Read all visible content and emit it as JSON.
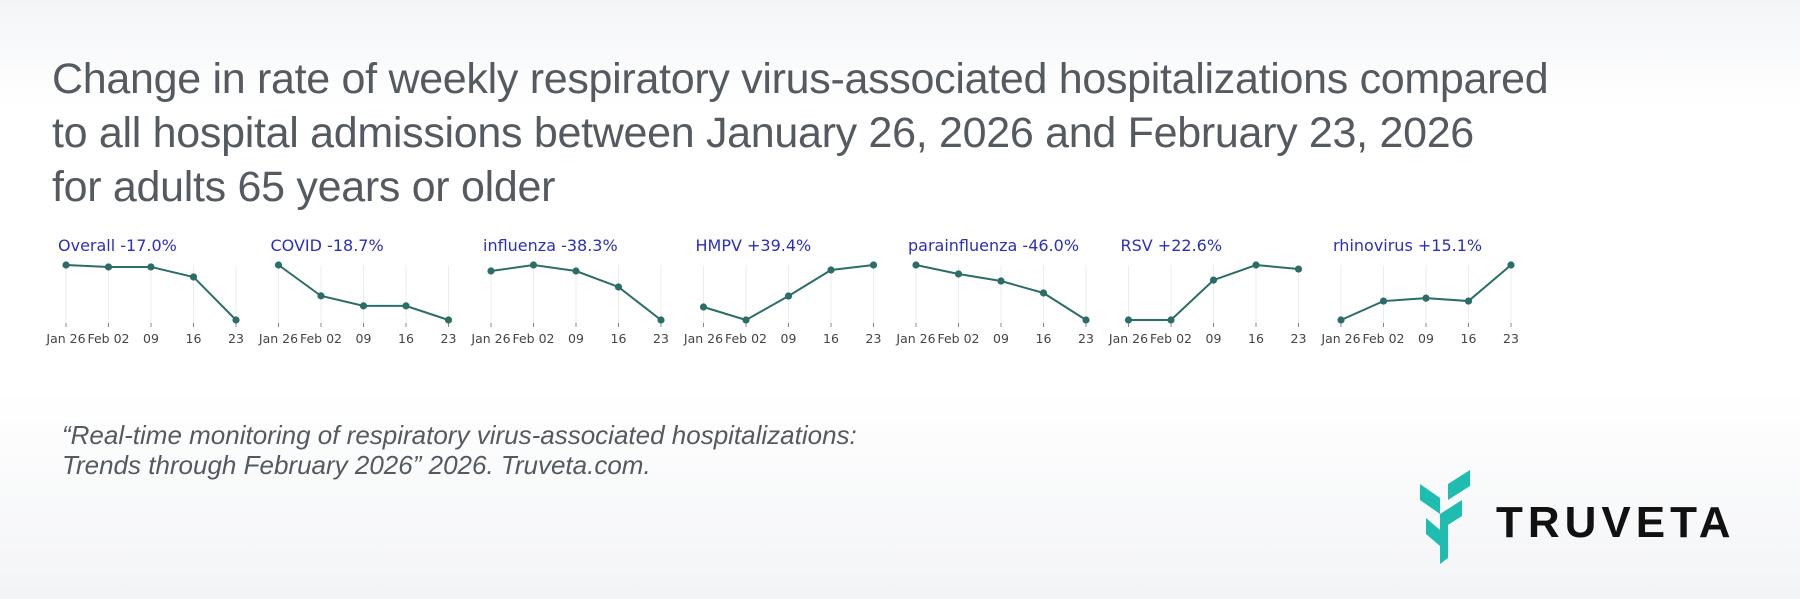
{
  "title": {
    "lines": [
      "Change in rate of weekly respiratory virus-associated hospitalizations compared",
      "to all hospital admissions between January 26, 2026 and February 23, 2026",
      "for adults 65 years or older"
    ]
  },
  "colors": {
    "line": "#2b6e67",
    "subtitle": "#2a2fbf",
    "text": "#555a60",
    "logo": "#1fbdb0"
  },
  "chart_data": [
    {
      "type": "line",
      "title": "Overall -17.0%",
      "categories": [
        "Jan 26",
        "Feb 02",
        "09",
        "16",
        "23"
      ],
      "values": [
        100,
        99.4,
        99.4,
        96.3,
        83.0
      ],
      "grid": "vertical"
    },
    {
      "type": "line",
      "title": "COVID -18.7%",
      "categories": [
        "Jan 26",
        "Feb 02",
        "09",
        "16",
        "23"
      ],
      "values": [
        100,
        89.5,
        86.1,
        86.1,
        81.3
      ],
      "grid": "vertical"
    },
    {
      "type": "line",
      "title": "influenza -38.3%",
      "categories": [
        "Jan 26",
        "Feb 02",
        "09",
        "16",
        "23"
      ],
      "values": [
        100,
        104.7,
        100,
        87.5,
        61.7
      ],
      "grid": "vertical"
    },
    {
      "type": "line",
      "title": "HMPV +39.4%",
      "categories": [
        "Jan 26",
        "Feb 02",
        "09",
        "16",
        "23"
      ],
      "values": [
        100,
        87.8,
        110.3,
        134.7,
        139.4
      ],
      "grid": "vertical"
    },
    {
      "type": "line",
      "title": "parainfluenza -46.0%",
      "categories": [
        "Jan 26",
        "Feb 02",
        "09",
        "16",
        "23"
      ],
      "values": [
        100,
        92.5,
        86.6,
        76.6,
        54.0
      ],
      "grid": "vertical"
    },
    {
      "type": "line",
      "title": "RSV +22.6%",
      "categories": [
        "Jan 26",
        "Feb 02",
        "09",
        "16",
        "23"
      ],
      "values": [
        100,
        100,
        117.7,
        124.4,
        122.6
      ],
      "grid": "vertical"
    },
    {
      "type": "line",
      "title": "rhinovirus +15.1%",
      "categories": [
        "Jan 26",
        "Feb 02",
        "09",
        "16",
        "23"
      ],
      "values": [
        100,
        105.2,
        106.0,
        105.2,
        115.1
      ],
      "grid": "vertical"
    }
  ],
  "citation": {
    "lines": [
      "“Real-time monitoring of respiratory virus-associated hospitalizations:",
      "Trends through February 2026” 2026. Truveta.com."
    ]
  },
  "logo": {
    "text": "TRUVETA"
  }
}
